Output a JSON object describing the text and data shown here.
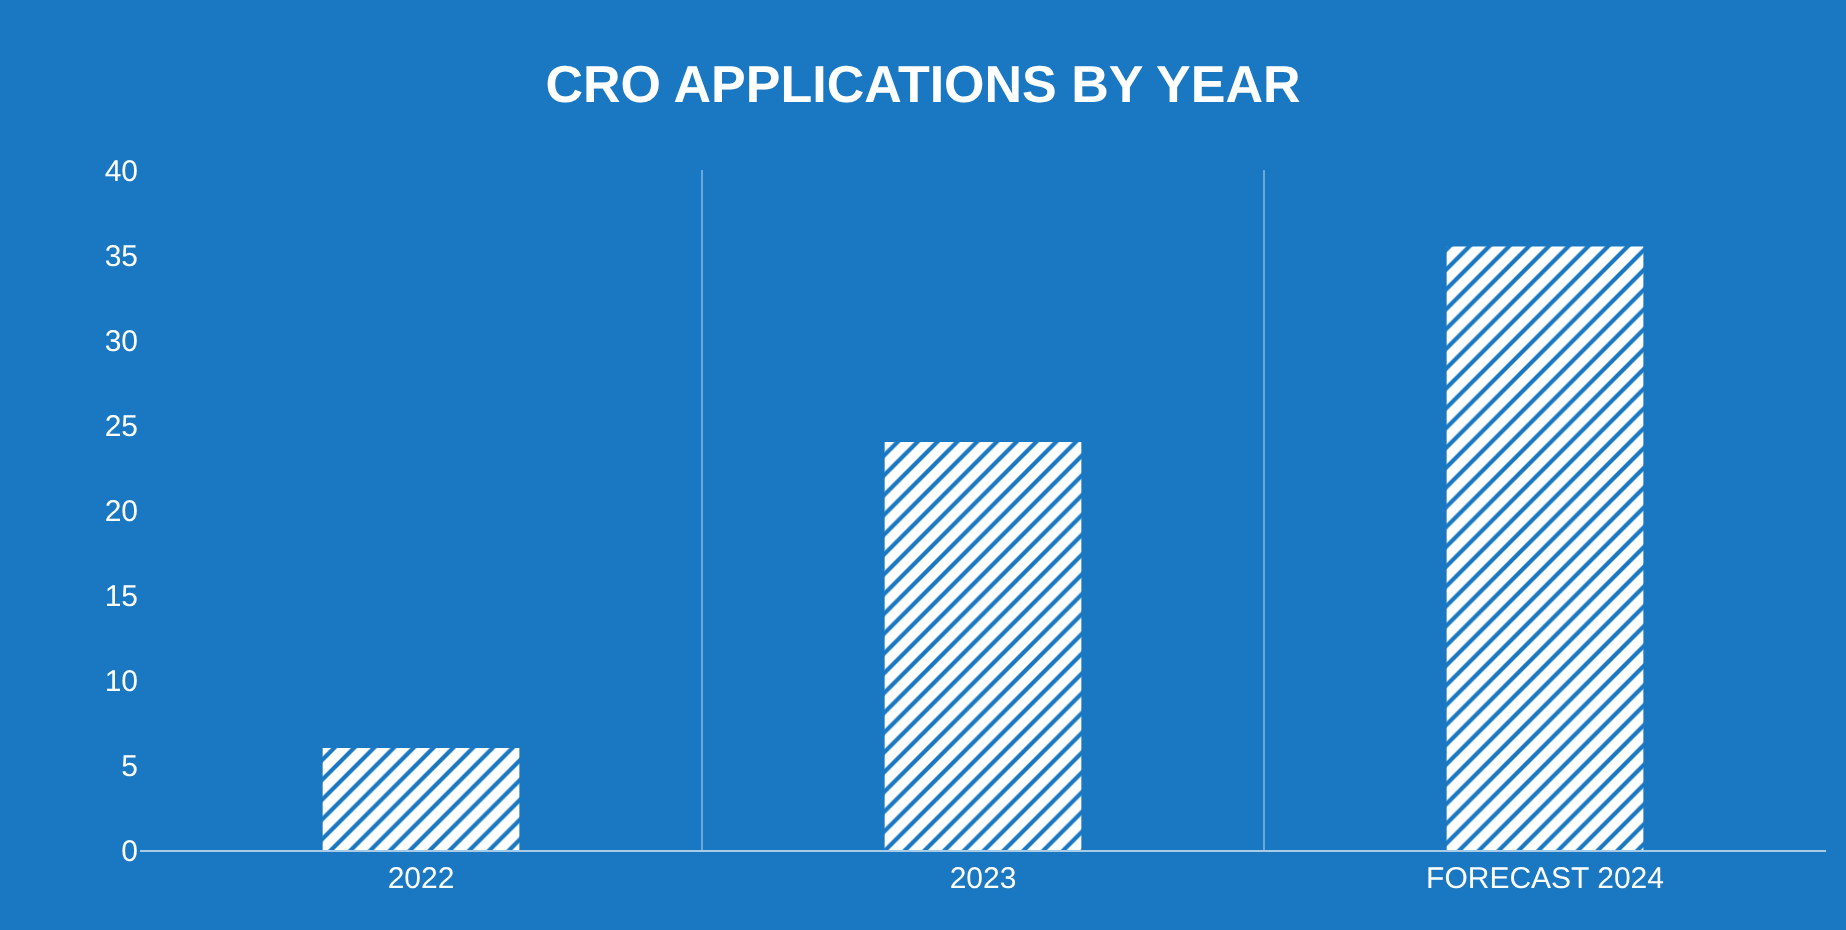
{
  "chart_data": {
    "type": "bar",
    "title": "CRO APPLICATIONS BY YEAR",
    "categories": [
      "2022",
      "2023",
      "FORECAST 2024"
    ],
    "values": [
      6,
      24,
      35.5
    ],
    "color": "#ffffff",
    "ylim": [
      0,
      40
    ],
    "yticks": [
      0,
      5,
      10,
      15,
      20,
      25,
      30,
      35,
      40
    ],
    "grid": "x"
  }
}
